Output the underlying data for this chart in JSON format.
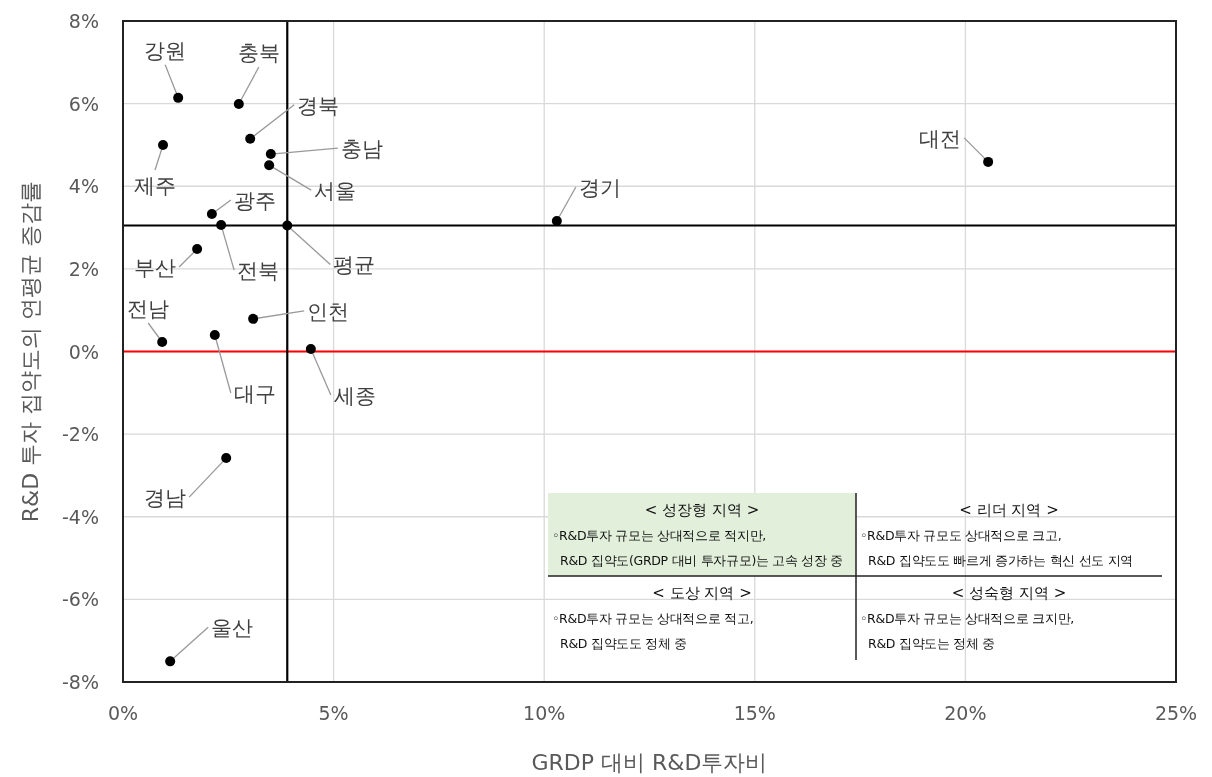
{
  "chart_data": {
    "type": "scatter",
    "xlabel": "GRDP 대비 R&D투자비",
    "ylabel": "R&D 투자 집약도의 연평균 증감률",
    "x": [
      1.31,
      2.75,
      3.02,
      3.51,
      3.47,
      0.95,
      2.11,
      2.33,
      3.9,
      1.76,
      0.93,
      2.18,
      3.09,
      4.46,
      10.3,
      20.54,
      2.45,
      1.12
    ],
    "series": [
      {
        "color": "#000000",
        "values": [
          6.14,
          5.99,
          5.15,
          4.78,
          4.51,
          5.0,
          3.33,
          3.06,
          3.05,
          2.48,
          0.23,
          0.4,
          0.79,
          0.06,
          3.16,
          4.59,
          -2.58,
          -7.5
        ]
      }
    ],
    "marker": "circle",
    "grid": true,
    "xlim": [
      0,
      25
    ],
    "xticks": [
      {
        "value": 0,
        "label": "0%"
      },
      {
        "value": 5,
        "label": "5%"
      },
      {
        "value": 10,
        "label": "10%"
      },
      {
        "value": 15,
        "label": "15%"
      },
      {
        "value": 20,
        "label": "20%"
      },
      {
        "value": 25,
        "label": "25%"
      }
    ],
    "ylim": [
      -8,
      8
    ],
    "yticks": [
      {
        "value": -8,
        "label": "-8%"
      },
      {
        "value": -6,
        "label": "-6%"
      },
      {
        "value": -4,
        "label": "-4%"
      },
      {
        "value": -2,
        "label": "-2%"
      },
      {
        "value": 0,
        "label": "0%"
      },
      {
        "value": 2,
        "label": "2%"
      },
      {
        "value": 4,
        "label": "4%"
      },
      {
        "value": 6,
        "label": "6%"
      },
      {
        "value": 8,
        "label": "8%"
      }
    ],
    "ref_lines": [
      {
        "axis": "y",
        "value": 0,
        "color": "#ff0000"
      },
      {
        "axis": "x",
        "value": 3.9,
        "color": "#000000"
      },
      {
        "axis": "y",
        "value": 3.05,
        "color": "#000000"
      }
    ],
    "annotations": [
      {
        "text": "강원",
        "x": 1.31,
        "y": 6.14
      },
      {
        "text": "충북",
        "x": 2.75,
        "y": 5.99
      },
      {
        "text": "경북",
        "x": 3.02,
        "y": 5.15
      },
      {
        "text": "충남",
        "x": 3.51,
        "y": 4.78
      },
      {
        "text": "서울",
        "x": 3.47,
        "y": 4.51
      },
      {
        "text": "제주",
        "x": 0.95,
        "y": 5.0
      },
      {
        "text": "광주",
        "x": 2.11,
        "y": 3.33
      },
      {
        "text": "전북",
        "x": 2.33,
        "y": 3.06
      },
      {
        "text": "평균",
        "x": 3.9,
        "y": 3.05
      },
      {
        "text": "부산",
        "x": 1.76,
        "y": 2.48
      },
      {
        "text": "전남",
        "x": 0.93,
        "y": 0.23
      },
      {
        "text": "대구",
        "x": 2.18,
        "y": 0.4
      },
      {
        "text": "인천",
        "x": 3.09,
        "y": 0.79
      },
      {
        "text": "세종",
        "x": 4.46,
        "y": 0.06
      },
      {
        "text": "경기",
        "x": 10.3,
        "y": 3.16
      },
      {
        "text": "대전",
        "x": 20.54,
        "y": 4.59
      },
      {
        "text": "경남",
        "x": 2.45,
        "y": -2.58
      },
      {
        "text": "울산",
        "x": 1.12,
        "y": -7.5
      },
      "< 성장형 지역 >\n◦R&D투자 규모는 상대적으로 적지만,\nR&D 집약도(GRDP 대비 투자규모)는 고속 성장 중",
      "< 리더 지역 >\n◦R&D투자 규모도 상대적으로 크고,\nR&D 집약도도 빠르게 증가하는 혁신 선도 지역",
      "< 도상 지역 >\n◦R&D투자 규모는 상대적으로 적고,\nR&D 집약도도 정체 중",
      "< 성숙형 지역 >\n◦R&D투자 규모는 상대적으로 크지만,\nR&D 집약도는 정체 중"
    ]
  }
}
